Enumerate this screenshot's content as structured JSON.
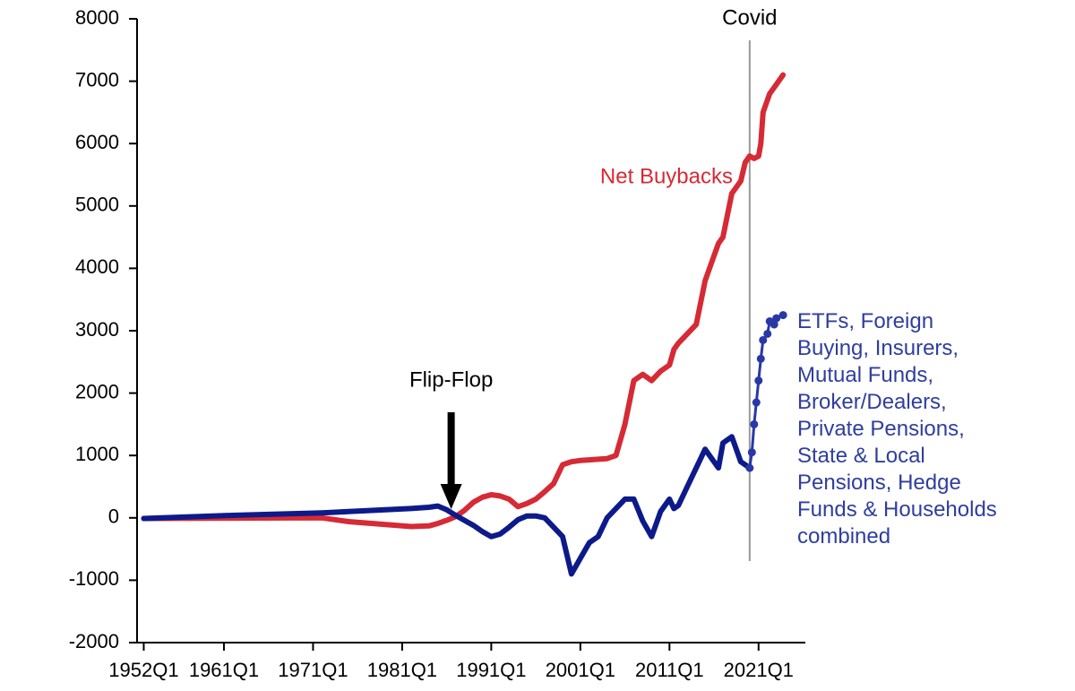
{
  "chart_data": {
    "type": "line",
    "x": [
      "1952Q1",
      "1962Q1",
      "1972Q1",
      "1975Q1",
      "1982Q1",
      "1984Q1",
      "1985Q1",
      "1986Q1",
      "1987Q1",
      "1988Q1",
      "1989Q1",
      "1990Q1",
      "1991Q1",
      "1992Q1",
      "1993Q1",
      "1994Q1",
      "1995Q1",
      "1996Q1",
      "1997Q1",
      "1998Q1",
      "1999Q1",
      "2000Q1",
      "2001Q1",
      "2002Q1",
      "2003Q1",
      "2004Q1",
      "2005Q1",
      "2006Q1",
      "2007Q1",
      "2008Q1",
      "2009Q1",
      "2010Q1",
      "2011Q1",
      "2011Q3",
      "2012Q1",
      "2013Q1",
      "2014Q1",
      "2015Q1",
      "2016Q1",
      "2016Q3",
      "2017Q1",
      "2018Q1",
      "2019Q1",
      "2019Q3",
      "2020Q1",
      "2020Q2",
      "2020Q3",
      "2020Q4",
      "2021Q1",
      "2021Q2",
      "2021Q3",
      "2022Q1",
      "2022Q2",
      "2022Q4",
      "2023Q1",
      "2023Q4"
    ],
    "series": [
      {
        "name": "Net Buybacks",
        "color": "#d62a35",
        "dots": false,
        "values": [
          -10,
          -5,
          0,
          -60,
          -140,
          -130,
          -90,
          -40,
          20,
          120,
          250,
          330,
          370,
          350,
          300,
          180,
          230,
          300,
          420,
          550,
          850,
          900,
          920,
          930,
          940,
          950,
          1000,
          1500,
          2200,
          2300,
          2200,
          2350,
          2450,
          2700,
          2800,
          2950,
          3100,
          3800,
          4200,
          4400,
          4500,
          5200,
          5400,
          5700,
          5800,
          5780,
          5760,
          5780,
          5800,
          6000,
          6500,
          6700,
          6800,
          6900,
          6950,
          7100
        ]
      },
      {
        "color": "#0d1a8a",
        "dots": false,
        "values": [
          -10,
          40,
          80,
          100,
          150,
          170,
          190,
          130,
          40,
          -40,
          -120,
          -220,
          -300,
          -260,
          -150,
          -30,
          30,
          30,
          0,
          -150,
          -300,
          -900,
          -650,
          -400,
          -300,
          0,
          150,
          300,
          300,
          -50,
          -300,
          100,
          300,
          150,
          200,
          500,
          800,
          1100,
          900,
          800,
          1200,
          1300,
          900,
          850,
          800,
          null,
          null,
          null,
          null,
          null,
          null,
          null,
          null,
          null,
          null,
          null
        ]
      },
      {
        "name": "ETFs, Foreign\nBuying, Insurers,\nMutual Funds,\nBroker/Dealers,\nPrivate Pensions,\nState & Local\nPensions, Hedge\nFunds & Households\ncombined",
        "color": "#2a38a6",
        "dots": true,
        "values": [
          null,
          null,
          null,
          null,
          null,
          null,
          null,
          null,
          null,
          null,
          null,
          null,
          null,
          null,
          null,
          null,
          null,
          null,
          null,
          null,
          null,
          null,
          null,
          null,
          null,
          null,
          null,
          null,
          null,
          null,
          null,
          null,
          null,
          null,
          null,
          null,
          null,
          null,
          null,
          null,
          null,
          null,
          null,
          null,
          800,
          1050,
          1500,
          1850,
          2200,
          2550,
          2850,
          2950,
          3150,
          3100,
          3200,
          3250
        ]
      }
    ],
    "xlim": [
      "1951Q2",
      "2026Q2"
    ],
    "xticks": [
      "1952Q1",
      "1961Q1",
      "1971Q1",
      "1981Q1",
      "1991Q1",
      "2001Q1",
      "2011Q1",
      "2021Q1"
    ],
    "ylim": [
      -2000,
      8000
    ],
    "yticks": [
      -2000,
      -1000,
      0,
      1000,
      2000,
      3000,
      4000,
      5000,
      6000,
      7000,
      8000
    ],
    "annotations": [
      {
        "text": "Covid",
        "x": "2020Q1",
        "style": "vline"
      },
      {
        "text": "Flip-Flop",
        "x": "1986Q3",
        "style": "arrow"
      }
    ]
  }
}
